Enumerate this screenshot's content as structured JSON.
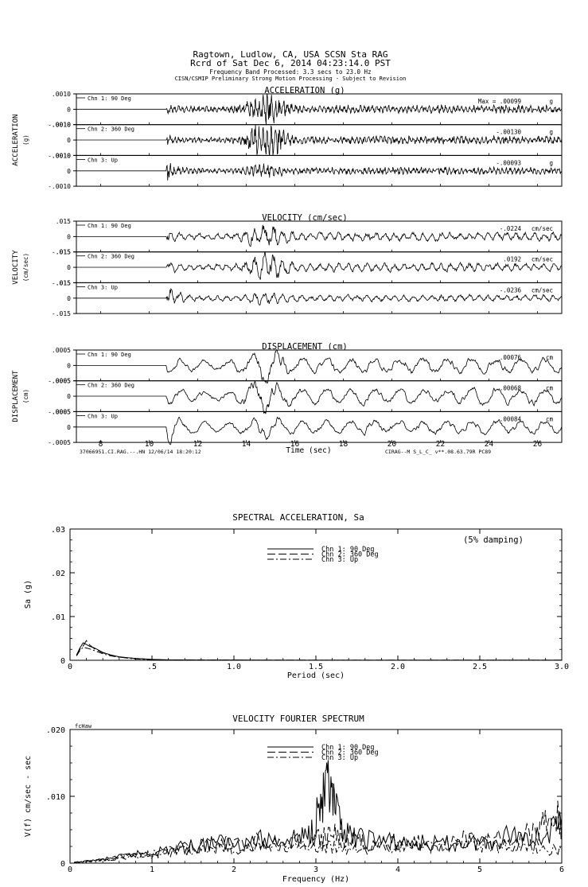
{
  "header": {
    "line1": "Ragtown, Ludlow, CA, USA    SCSN Sta RAG",
    "line2": "Rcrd of Sat Dec  6, 2014 04:23:14.0 PST",
    "line3": "Frequency Band Processed: 3.3 secs to 23.0 Hz",
    "line4": "CISN/CSMIP Preliminary Strong Motion Processing - Subject to Revision"
  },
  "time_axis": {
    "label": "Time (sec)",
    "xlim": [
      7,
      27
    ],
    "ticks": [
      8,
      10,
      12,
      14,
      16,
      18,
      20,
      22,
      24,
      26
    ],
    "tick_labels": [
      "8",
      "10",
      "12",
      "14",
      "16",
      "18",
      "20",
      "22",
      "24",
      "26"
    ],
    "footer_left": "37066951.CI.RAG.--.HN 12/06/14 18:20:12",
    "footer_right": "CIRAG--M  S_L_C_  v**.08.63.79R PC89"
  },
  "chart_data": [
    {
      "type": "line",
      "title": "ACCELERATION (g)",
      "side_label": "ACCELERATION",
      "unit_label": "(g)",
      "xlim": [
        7,
        27
      ],
      "channels": [
        {
          "name": "Chn 1: 90 Deg",
          "peak_prefix": "Max = ",
          "peak": ".00099",
          "peak_unit": "g",
          "ylim": [
            -0.001,
            0.001
          ],
          "ytick_labels": [
            ".0010",
            "0",
            "-.0010"
          ],
          "onset": 10.7,
          "strong_time": 14.8,
          "base": 0.18,
          "strong": 0.75,
          "pulse": 0.15,
          "tail": 0.3,
          "freq": 6,
          "seed": 1,
          "smooth": 1
        },
        {
          "name": "Chn 2: 360 Deg",
          "peak_prefix": "",
          "peak": "-.00130",
          "peak_unit": "g",
          "ylim": [
            -0.001,
            0.001
          ],
          "ytick_labels": [
            ".0010",
            "0",
            "-.0010"
          ],
          "onset": 10.7,
          "strong_time": 14.8,
          "base": 0.18,
          "strong": 1.0,
          "pulse": 0.2,
          "tail": 0.3,
          "freq": 6,
          "seed": 2,
          "smooth": 1
        },
        {
          "name": "Chn 3: Up",
          "peak_prefix": "",
          "peak": "-.00093",
          "peak_unit": "g",
          "ylim": [
            -0.001,
            0.001
          ],
          "ytick_labels": [
            ".0010",
            "0",
            "-.0010"
          ],
          "onset": 10.7,
          "strong_time": 14.8,
          "base": 0.15,
          "strong": 0.25,
          "pulse": 0.55,
          "tail": 0.28,
          "freq": 6,
          "seed": 3,
          "smooth": 1
        }
      ]
    },
    {
      "type": "line",
      "title": "VELOCITY (cm/sec)",
      "side_label": "VELOCITY",
      "unit_label": "(cm/sec)",
      "xlim": [
        7,
        27
      ],
      "channels": [
        {
          "name": "Chn 1: 90 Deg",
          "peak_prefix": "",
          "peak": "-.0224",
          "peak_unit": "cm/sec",
          "ylim": [
            -0.015,
            0.015
          ],
          "ytick_labels": [
            ".015",
            "0",
            "-.015"
          ],
          "onset": 10.7,
          "strong_time": 14.8,
          "base": 0.28,
          "strong": 0.75,
          "pulse": 0.3,
          "tail": 0.45,
          "freq": 2.6,
          "seed": 4,
          "smooth": 2
        },
        {
          "name": "Chn 2: 360 Deg",
          "peak_prefix": "",
          "peak": ".0192",
          "peak_unit": "cm/sec",
          "ylim": [
            -0.015,
            0.015
          ],
          "ytick_labels": [
            ".015",
            "0",
            "-.015"
          ],
          "onset": 10.7,
          "strong_time": 14.8,
          "base": 0.28,
          "strong": 0.95,
          "pulse": 0.3,
          "tail": 0.45,
          "freq": 2.6,
          "seed": 5,
          "smooth": 2
        },
        {
          "name": "Chn 3: Up",
          "peak_prefix": "",
          "peak": "-.0236",
          "peak_unit": "cm/sec",
          "ylim": [
            -0.015,
            0.015
          ],
          "ytick_labels": [
            ".015",
            "0",
            "-.015"
          ],
          "onset": 10.7,
          "strong_time": 14.8,
          "base": 0.22,
          "strong": 0.35,
          "pulse": 1.15,
          "tail": 0.32,
          "freq": 2.6,
          "seed": 6,
          "smooth": 2
        }
      ]
    },
    {
      "type": "line",
      "title": "DISPLACEMENT (cm)",
      "side_label": "DISPLACEMENT",
      "unit_label": "(cm)",
      "xlim": [
        7,
        27
      ],
      "channels": [
        {
          "name": "Chn 1: 90 Deg",
          "peak_prefix": "",
          "peak": ".00076",
          "peak_unit": "cm",
          "ylim": [
            -0.0005,
            0.0005
          ],
          "ytick_labels": [
            ".0005",
            "0",
            "-.0005"
          ],
          "onset": 10.7,
          "strong_time": 14.7,
          "base": 0.32,
          "strong": 0.85,
          "pulse": 0.3,
          "tail": 0.6,
          "freq": 1.0,
          "seed": 7,
          "smooth": 3
        },
        {
          "name": "Chn 2: 360 Deg",
          "peak_prefix": "",
          "peak": ".00068",
          "peak_unit": "cm",
          "ylim": [
            -0.0005,
            0.0005
          ],
          "ytick_labels": [
            ".0005",
            "0",
            "-.0005"
          ],
          "onset": 10.7,
          "strong_time": 14.7,
          "base": 0.32,
          "strong": 0.9,
          "pulse": 0.35,
          "tail": 0.6,
          "freq": 1.0,
          "seed": 8,
          "smooth": 3
        },
        {
          "name": "Chn 3: Up",
          "peak_prefix": "",
          "peak": ".00084",
          "peak_unit": "cm",
          "ylim": [
            -0.0005,
            0.0005
          ],
          "ytick_labels": [
            ".0005",
            "0",
            "-.0005"
          ],
          "onset": 10.7,
          "strong_time": 14.7,
          "base": 0.3,
          "strong": 0.45,
          "pulse": 1.1,
          "tail": 0.5,
          "freq": 1.0,
          "seed": 9,
          "smooth": 3
        }
      ]
    },
    {
      "type": "line",
      "title": "SPECTRAL ACCELERATION, Sa",
      "xlabel": "Period (sec)",
      "ylabel": "Sa (g)",
      "annotation": "(5% damping)",
      "xlim": [
        0,
        3.0
      ],
      "ylim": [
        0,
        0.03
      ],
      "xtick_labels": [
        "0",
        ".5",
        "1.0",
        "1.5",
        "2.0",
        "2.5",
        "3.0"
      ],
      "ytick_labels": [
        "0",
        ".01",
        ".02",
        ".03"
      ],
      "series": [
        {
          "name": "Chn 1: 90 Deg",
          "style": "solid",
          "x": [
            0.04,
            0.06,
            0.08,
            0.1,
            0.12,
            0.15,
            0.2,
            0.25,
            0.3,
            0.4,
            0.5,
            0.6,
            0.8,
            1.0,
            1.5,
            2.0,
            2.5,
            3.0
          ],
          "y": [
            0.0012,
            0.0028,
            0.004,
            0.0036,
            0.0032,
            0.0028,
            0.0018,
            0.0012,
            0.0008,
            0.0004,
            0.0002,
            0.0001,
            5e-05,
            3e-05,
            2e-05,
            1e-05,
            1e-05,
            1e-05
          ]
        },
        {
          "name": "Chn 2: 360 Deg",
          "style": "dash",
          "x": [
            0.04,
            0.06,
            0.08,
            0.1,
            0.12,
            0.15,
            0.2,
            0.25,
            0.3,
            0.4,
            0.5,
            0.6,
            0.8,
            1.0,
            1.5,
            2.0,
            2.5,
            3.0
          ],
          "y": [
            0.0011,
            0.0025,
            0.0033,
            0.0045,
            0.0035,
            0.0026,
            0.0017,
            0.0011,
            0.0007,
            0.0004,
            0.0002,
            0.0001,
            5e-05,
            3e-05,
            2e-05,
            1e-05,
            1e-05,
            1e-05
          ]
        },
        {
          "name": "Chn 3: Up",
          "style": "dashdot",
          "x": [
            0.04,
            0.06,
            0.08,
            0.1,
            0.12,
            0.15,
            0.2,
            0.25,
            0.3,
            0.4,
            0.5,
            0.6,
            0.8,
            1.0,
            1.5,
            2.0,
            2.5,
            3.0
          ],
          "y": [
            0.001,
            0.0022,
            0.003,
            0.0028,
            0.0026,
            0.0022,
            0.0015,
            0.001,
            0.0007,
            0.0003,
            0.00015,
            0.0001,
            5e-05,
            3e-05,
            2e-05,
            1e-05,
            1e-05,
            1e-05
          ]
        }
      ]
    },
    {
      "type": "line",
      "title": "VELOCITY FOURIER SPECTRUM",
      "xlabel": "Frequency (Hz)",
      "ylabel": "V(f)  cm/sec - sec",
      "corner_label": "fcHaw",
      "xlim": [
        0,
        6
      ],
      "ylim": [
        0,
        0.02
      ],
      "xtick_labels": [
        "0",
        "1",
        "2",
        "3",
        "4",
        "5",
        "6"
      ],
      "ytick_labels": [
        "0",
        ".010",
        ".020"
      ],
      "series": [
        {
          "name": "Chn 1: 90 Deg",
          "style": "solid",
          "x": [
            0.05,
            0.3,
            0.6,
            0.9,
            1.2,
            1.5,
            1.8,
            2.1,
            2.4,
            2.7,
            2.9,
            3.05,
            3.15,
            3.25,
            3.4,
            3.6,
            3.9,
            4.2,
            4.5,
            4.8,
            5.1,
            5.4,
            5.7,
            6.0
          ],
          "y": [
            0.0001,
            0.0004,
            0.0009,
            0.0015,
            0.002,
            0.0026,
            0.003,
            0.0032,
            0.0035,
            0.0036,
            0.004,
            0.0085,
            0.0108,
            0.0072,
            0.004,
            0.0038,
            0.0032,
            0.003,
            0.0028,
            0.003,
            0.0032,
            0.0045,
            0.004,
            0.0055
          ]
        },
        {
          "name": "Chn 2: 360 Deg",
          "style": "dash",
          "x": [
            0.05,
            0.3,
            0.6,
            0.9,
            1.2,
            1.5,
            1.8,
            2.1,
            2.4,
            2.7,
            3.0,
            3.2,
            3.4,
            3.6,
            3.9,
            4.2,
            4.5,
            4.8,
            5.1,
            5.4,
            5.7,
            5.9,
            6.0
          ],
          "y": [
            0.0001,
            0.0004,
            0.0009,
            0.0014,
            0.0019,
            0.0024,
            0.0027,
            0.003,
            0.0032,
            0.003,
            0.0034,
            0.0042,
            0.0036,
            0.003,
            0.0028,
            0.003,
            0.0026,
            0.0034,
            0.0032,
            0.004,
            0.0045,
            0.0072,
            0.006
          ]
        },
        {
          "name": "Chn 3: Up",
          "style": "dashdot",
          "x": [
            0.05,
            0.3,
            0.6,
            0.9,
            1.2,
            1.5,
            1.8,
            2.1,
            2.4,
            2.7,
            3.0,
            3.3,
            3.6,
            3.9,
            4.2,
            4.5,
            4.8,
            5.1,
            5.4,
            5.7,
            6.0
          ],
          "y": [
            0.0001,
            0.0003,
            0.0007,
            0.0012,
            0.0016,
            0.002,
            0.0022,
            0.0024,
            0.0025,
            0.0022,
            0.0024,
            0.0025,
            0.0024,
            0.0022,
            0.0024,
            0.0026,
            0.0032,
            0.0028,
            0.0024,
            0.0022,
            0.002
          ]
        }
      ]
    }
  ]
}
